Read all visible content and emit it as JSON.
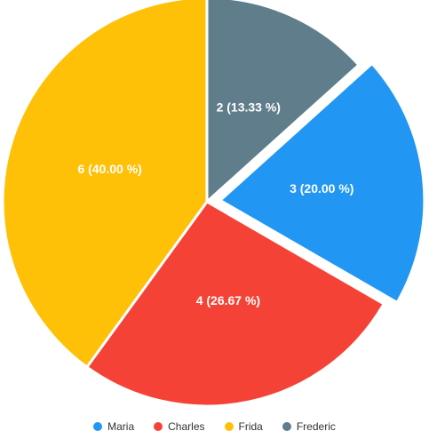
{
  "chart_data": {
    "type": "pie",
    "categories": [
      "Maria",
      "Charles",
      "Frida",
      "Frederic"
    ],
    "values": [
      3,
      4,
      6,
      2
    ],
    "labels": [
      "3 (20.00 %)",
      "4 (26.67 %)",
      "6 (40.00 %)",
      "2 (13.33 %)"
    ],
    "colors": [
      "#2196f3",
      "#f44336",
      "#ffc107",
      "#607d8b"
    ],
    "exploded": [
      true,
      false,
      false,
      false
    ],
    "legend_position": "bottom",
    "title": ""
  }
}
